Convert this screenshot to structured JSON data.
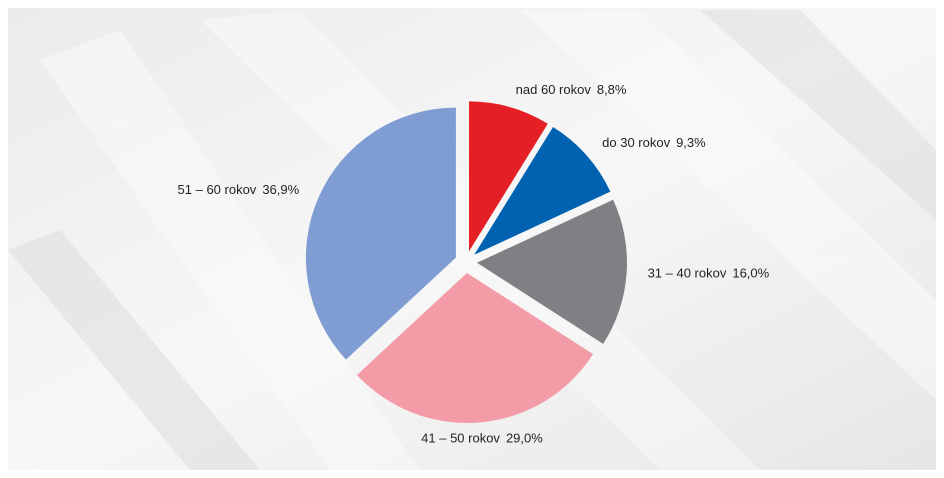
{
  "chart_data": {
    "type": "pie",
    "categories": [
      "nad 60 rokov",
      "do 30 rokov",
      "31 – 40 rokov",
      "41 – 50 rokov",
      "51 – 60 rokov"
    ],
    "values": [
      8.8,
      9.3,
      16.0,
      29.0,
      36.9
    ],
    "value_labels": [
      "8,8%",
      "9,3%",
      "16,0%",
      "29,0%",
      "36,9%"
    ],
    "colors": [
      "#e41f26",
      "#0062b1",
      "#7f8083",
      "#f39ba6",
      "#7f9dd2"
    ]
  }
}
